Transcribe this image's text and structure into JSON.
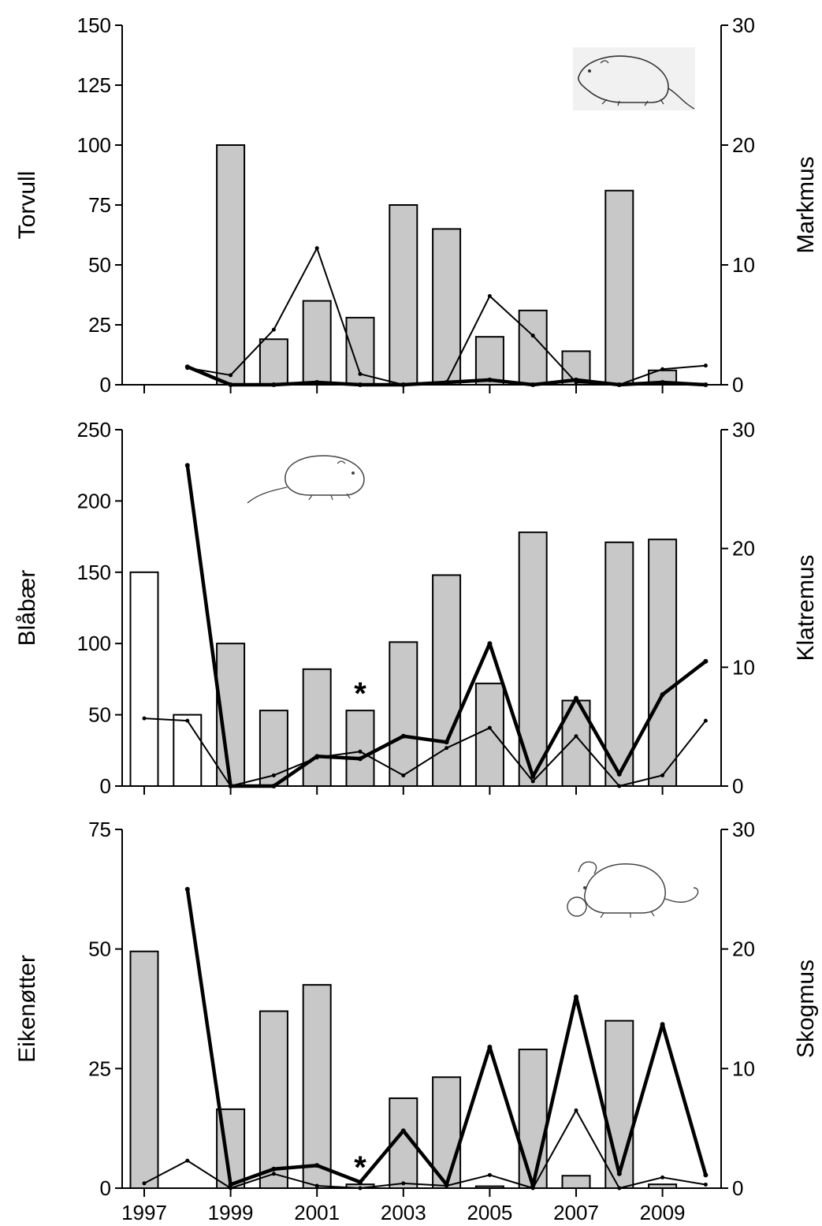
{
  "chart_data": [
    {
      "type": "bar",
      "id": "top",
      "left_axis_label": "Torvull",
      "right_axis_label": "Markmus",
      "left_ylim": [
        0,
        150
      ],
      "left_ticks": [
        0,
        25,
        50,
        75,
        100,
        125,
        150
      ],
      "right_ylim": [
        0,
        30
      ],
      "right_ticks": [
        0,
        10,
        20,
        30
      ],
      "x": [
        1997,
        1998,
        1999,
        2000,
        2001,
        2002,
        2003,
        2004,
        2005,
        2006,
        2007,
        2008,
        2009,
        2010
      ],
      "x_tick_labels": [],
      "bars": [
        {
          "year": 1999,
          "value": 100,
          "fill": "gray"
        },
        {
          "year": 2000,
          "value": 19,
          "fill": "gray"
        },
        {
          "year": 2001,
          "value": 35,
          "fill": "gray"
        },
        {
          "year": 2002,
          "value": 28,
          "fill": "gray"
        },
        {
          "year": 2003,
          "value": 75,
          "fill": "gray"
        },
        {
          "year": 2004,
          "value": 65,
          "fill": "gray"
        },
        {
          "year": 2005,
          "value": 20,
          "fill": "gray"
        },
        {
          "year": 2006,
          "value": 31,
          "fill": "gray"
        },
        {
          "year": 2007,
          "value": 14,
          "fill": "gray"
        },
        {
          "year": 2008,
          "value": 81,
          "fill": "gray"
        },
        {
          "year": 2009,
          "value": 6,
          "fill": "gray"
        }
      ],
      "lines": [
        {
          "style": "thin",
          "points": [
            [
              1998,
              1.4
            ],
            [
              1999,
              0.8
            ],
            [
              2000,
              4.6
            ],
            [
              2001,
              11.4
            ],
            [
              2002,
              0.9
            ],
            [
              2003,
              0
            ],
            [
              2004,
              0.2
            ],
            [
              2005,
              7.4
            ],
            [
              2006,
              4.1
            ],
            [
              2007,
              0.2
            ],
            [
              2008,
              0
            ],
            [
              2009,
              1.3
            ],
            [
              2010,
              1.6
            ]
          ]
        },
        {
          "style": "thick",
          "points": [
            [
              1998,
              1.5
            ],
            [
              1999,
              0
            ],
            [
              2000,
              0
            ],
            [
              2001,
              0.2
            ],
            [
              2002,
              0
            ],
            [
              2003,
              0
            ],
            [
              2004,
              0.2
            ],
            [
              2005,
              0.4
            ],
            [
              2006,
              0
            ],
            [
              2007,
              0.4
            ],
            [
              2008,
              0
            ],
            [
              2009,
              0.2
            ],
            [
              2010,
              0
            ]
          ]
        }
      ],
      "annotations": []
    },
    {
      "type": "bar",
      "id": "middle",
      "left_axis_label": "Blåbær",
      "right_axis_label": "Klatremus",
      "left_ylim": [
        0,
        250
      ],
      "left_ticks": [
        0,
        50,
        100,
        150,
        200,
        250
      ],
      "right_ylim": [
        0,
        30
      ],
      "right_ticks": [
        0,
        10,
        20,
        30
      ],
      "x": [
        1997,
        1998,
        1999,
        2000,
        2001,
        2002,
        2003,
        2004,
        2005,
        2006,
        2007,
        2008,
        2009,
        2010
      ],
      "x_tick_labels": [],
      "bars": [
        {
          "year": 1997,
          "value": 150,
          "fill": "white"
        },
        {
          "year": 1998,
          "value": 50,
          "fill": "white"
        },
        {
          "year": 1999,
          "value": 100,
          "fill": "gray"
        },
        {
          "year": 2000,
          "value": 53,
          "fill": "gray"
        },
        {
          "year": 2001,
          "value": 82,
          "fill": "gray"
        },
        {
          "year": 2002,
          "value": 53,
          "fill": "gray"
        },
        {
          "year": 2003,
          "value": 101,
          "fill": "gray"
        },
        {
          "year": 2004,
          "value": 148,
          "fill": "gray"
        },
        {
          "year": 2005,
          "value": 72,
          "fill": "gray"
        },
        {
          "year": 2006,
          "value": 178,
          "fill": "gray"
        },
        {
          "year": 2007,
          "value": 60,
          "fill": "gray"
        },
        {
          "year": 2008,
          "value": 171,
          "fill": "gray"
        },
        {
          "year": 2009,
          "value": 173,
          "fill": "gray"
        }
      ],
      "lines": [
        {
          "style": "thin",
          "points": [
            [
              1997,
              5.7
            ],
            [
              1998,
              5.5
            ],
            [
              1999,
              0
            ],
            [
              2000,
              0.9
            ],
            [
              2001,
              2.4
            ],
            [
              2002,
              2.9
            ],
            [
              2003,
              0.9
            ],
            [
              2004,
              3.2
            ],
            [
              2005,
              4.9
            ],
            [
              2006,
              0.4
            ],
            [
              2007,
              4.2
            ],
            [
              2008,
              0
            ],
            [
              2009,
              0.9
            ],
            [
              2010,
              5.5
            ]
          ]
        },
        {
          "style": "thick",
          "points": [
            [
              1998,
              27
            ],
            [
              1999,
              0
            ],
            [
              2000,
              0
            ],
            [
              2001,
              2.5
            ],
            [
              2002,
              2.3
            ],
            [
              2003,
              4.2
            ],
            [
              2004,
              3.7
            ],
            [
              2005,
              12
            ],
            [
              2006,
              0.8
            ],
            [
              2007,
              7.4
            ],
            [
              2008,
              1
            ],
            [
              2009,
              7.7
            ],
            [
              2010,
              10.5
            ]
          ]
        }
      ],
      "annotations": [
        {
          "year": 2002,
          "value": 53,
          "text": "*"
        }
      ]
    },
    {
      "type": "bar",
      "id": "bottom",
      "left_axis_label": "Eikenøtter",
      "right_axis_label": "Skogmus",
      "left_ylim": [
        0,
        75
      ],
      "left_ticks": [
        0,
        25,
        50,
        75
      ],
      "right_ylim": [
        0,
        30
      ],
      "right_ticks": [
        0,
        10,
        20,
        30
      ],
      "x": [
        1997,
        1998,
        1999,
        2000,
        2001,
        2002,
        2003,
        2004,
        2005,
        2006,
        2007,
        2008,
        2009,
        2010
      ],
      "x_tick_labels": [
        "1997",
        "1999",
        "2001",
        "2003",
        "2005",
        "2007",
        "2009"
      ],
      "bars": [
        {
          "year": 1997,
          "value": 49.5,
          "fill": "gray"
        },
        {
          "year": 1999,
          "value": 16.5,
          "fill": "gray"
        },
        {
          "year": 2000,
          "value": 37,
          "fill": "gray"
        },
        {
          "year": 2001,
          "value": 42.5,
          "fill": "gray"
        },
        {
          "year": 2002,
          "value": 0.8,
          "fill": "gray"
        },
        {
          "year": 2003,
          "value": 18.8,
          "fill": "gray"
        },
        {
          "year": 2004,
          "value": 23.2,
          "fill": "gray"
        },
        {
          "year": 2005,
          "value": 0.4,
          "fill": "gray"
        },
        {
          "year": 2006,
          "value": 29,
          "fill": "gray"
        },
        {
          "year": 2007,
          "value": 2.6,
          "fill": "gray"
        },
        {
          "year": 2008,
          "value": 35,
          "fill": "gray"
        },
        {
          "year": 2009,
          "value": 0.8,
          "fill": "gray"
        }
      ],
      "lines": [
        {
          "style": "thin",
          "points": [
            [
              1997,
              0.4
            ],
            [
              1998,
              2.3
            ],
            [
              1999,
              0
            ],
            [
              2000,
              1.2
            ],
            [
              2001,
              0.2
            ],
            [
              2002,
              0
            ],
            [
              2003,
              0.4
            ],
            [
              2004,
              0.2
            ],
            [
              2005,
              1.1
            ],
            [
              2006,
              0
            ],
            [
              2007,
              6.5
            ],
            [
              2008,
              0
            ],
            [
              2009,
              0.9
            ],
            [
              2010,
              0.3
            ]
          ]
        },
        {
          "style": "thick",
          "points": [
            [
              1998,
              25
            ],
            [
              1999,
              0.3
            ],
            [
              2000,
              1.6
            ],
            [
              2001,
              1.9
            ],
            [
              2002,
              0.5
            ],
            [
              2003,
              4.8
            ],
            [
              2004,
              0.3
            ],
            [
              2005,
              11.8
            ],
            [
              2006,
              0.2
            ],
            [
              2007,
              16
            ],
            [
              2008,
              1.2
            ],
            [
              2009,
              13.7
            ],
            [
              2010,
              1.1
            ]
          ]
        }
      ],
      "annotations": [
        {
          "year": 2002,
          "value": 0.8,
          "text": "*"
        }
      ]
    }
  ]
}
